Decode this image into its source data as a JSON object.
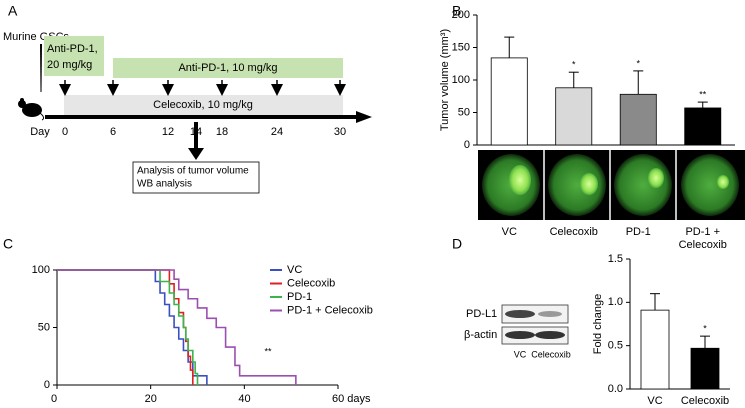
{
  "panel_labels": [
    "A",
    "B",
    "C",
    "D"
  ],
  "diagram": {
    "cells": "Murine GSCs",
    "first_dose": [
      "Anti-PD-1,",
      "20 mg/kg"
    ],
    "repeat_dose": "Anti-PD-1, 10 mg/kg",
    "celecoxib": "Celecoxib, 10 mg/kg",
    "day_label": "Day",
    "days": [
      "0",
      "6",
      "12",
      "14",
      "18",
      "24",
      "30"
    ],
    "analysis": [
      "Analysis of tumor volume",
      "WB analysis"
    ]
  },
  "blot": {
    "bands": [
      "PD-L1",
      "β-actin"
    ],
    "lanes": [
      "VC",
      "Celecoxib"
    ]
  },
  "chart_data": [
    {
      "type": "bar",
      "y_label": "Tumor volume (mm³)",
      "categories": [
        "VC",
        "Celecoxib",
        "PD-1",
        "PD-1 + Celecoxib"
      ],
      "values": [
        134,
        88,
        78,
        57
      ],
      "errors": [
        32,
        24,
        36,
        9
      ],
      "colors": [
        "#ffffff",
        "#d9d9d9",
        "#8a8a8a",
        "#000000"
      ],
      "annotations": [
        null,
        "*",
        "*",
        "**"
      ],
      "ylim": [
        0,
        200
      ],
      "yticks": [
        0,
        50,
        100,
        150,
        200
      ]
    },
    {
      "type": "survival",
      "annotation": "**",
      "xlim": [
        0,
        60
      ],
      "xticks": [
        0,
        20,
        40,
        {
          "value": 60,
          "label": "60 days"
        }
      ],
      "ylim": [
        0,
        100
      ],
      "yticks": [
        0,
        50,
        100
      ],
      "series": [
        {
          "name": "VC",
          "color": "#3a4fc2",
          "x": [
            0,
            21,
            22,
            23,
            24,
            25,
            26,
            27,
            28,
            29,
            32
          ],
          "values": [
            100,
            90,
            80,
            70,
            60,
            50,
            40,
            30,
            20,
            8,
            0
          ]
        },
        {
          "name": "Celecoxib",
          "color": "#e02020",
          "x": [
            0,
            24,
            25,
            26,
            27,
            27.5,
            28,
            28.5,
            29
          ],
          "values": [
            100,
            88,
            75,
            63,
            50,
            38,
            25,
            13,
            0
          ]
        },
        {
          "name": "PD-1",
          "color": "#3cb44b",
          "x": [
            0,
            22,
            24,
            25,
            26,
            27,
            27.5,
            28,
            29,
            29.5,
            30
          ],
          "values": [
            100,
            90,
            80,
            70,
            60,
            50,
            40,
            30,
            20,
            10,
            0
          ]
        },
        {
          "name": "PD-1 + Celecoxib",
          "color": "#9b4fb0",
          "x": [
            0,
            25,
            26,
            28,
            30,
            32,
            34,
            36,
            38,
            39,
            51
          ],
          "values": [
            100,
            92,
            83,
            75,
            67,
            58,
            50,
            33,
            17,
            8,
            0
          ]
        }
      ]
    },
    {
      "type": "bar",
      "y_label": "Fold change",
      "categories": [
        "VC",
        "Celecoxib"
      ],
      "values": [
        0.91,
        0.47
      ],
      "errors": [
        0.19,
        0.14
      ],
      "colors": [
        "#ffffff",
        "#000000"
      ],
      "annotations": [
        null,
        "*"
      ],
      "ylim": [
        0,
        1.5
      ],
      "yticks": [
        {
          "value": 0,
          "label": "0.0"
        },
        0.5,
        {
          "value": 1,
          "label": "1.0"
        },
        1.5
      ]
    }
  ]
}
